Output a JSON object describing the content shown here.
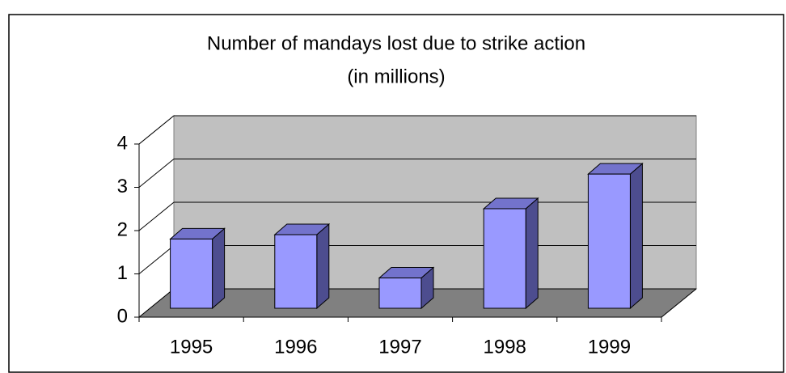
{
  "chart_data": {
    "type": "bar3d",
    "title": "Number of mandays lost due to strike action",
    "subtitle": "(in millions)",
    "categories": [
      "1995",
      "1996",
      "1997",
      "1998",
      "1999"
    ],
    "values": [
      1.6,
      1.7,
      0.7,
      2.3,
      3.1
    ],
    "color": "#9999ff",
    "ylim": [
      0,
      4
    ],
    "yticks": [
      0,
      1,
      2,
      3,
      4
    ],
    "grid": true
  }
}
